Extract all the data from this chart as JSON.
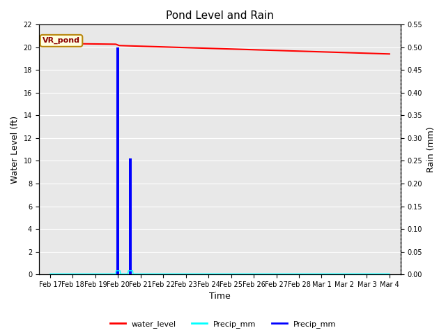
{
  "title": "Pond Level and Rain",
  "xlabel": "Time",
  "ylabel_left": "Water Level (ft)",
  "ylabel_right": "Rain (mm)",
  "annotation": "VR_pond",
  "ylim_left": [
    0,
    22
  ],
  "ylim_right": [
    0.0,
    0.55
  ],
  "yticks_left": [
    0,
    2,
    4,
    6,
    8,
    10,
    12,
    14,
    16,
    18,
    20,
    22
  ],
  "yticks_right": [
    0.0,
    0.05,
    0.1,
    0.15,
    0.2,
    0.25,
    0.3,
    0.35,
    0.4,
    0.45,
    0.5,
    0.55
  ],
  "background_color": "#e8e8e8",
  "water_level_color": "red",
  "precip_cyan_color": "cyan",
  "precip_blue_color": "blue",
  "legend_labels": [
    "water_level",
    "Precip_mm",
    "Precip_mm"
  ],
  "legend_colors": [
    "red",
    "cyan",
    "blue"
  ],
  "xtick_labels": [
    "Feb 17",
    "Feb 18",
    "Feb 19",
    "Feb 20",
    "Feb 21",
    "Feb 22",
    "Feb 23",
    "Feb 24",
    "Feb 25",
    "Feb 26",
    "Feb 27",
    "Feb 28",
    "Mar 1",
    "Mar 2",
    "Mar 3",
    "Mar 4"
  ],
  "xtick_positions": [
    0,
    1,
    2,
    3,
    4,
    5,
    6,
    7,
    8,
    9,
    10,
    11,
    12,
    13,
    14,
    15
  ],
  "xlim": [
    -0.5,
    15.5
  ]
}
